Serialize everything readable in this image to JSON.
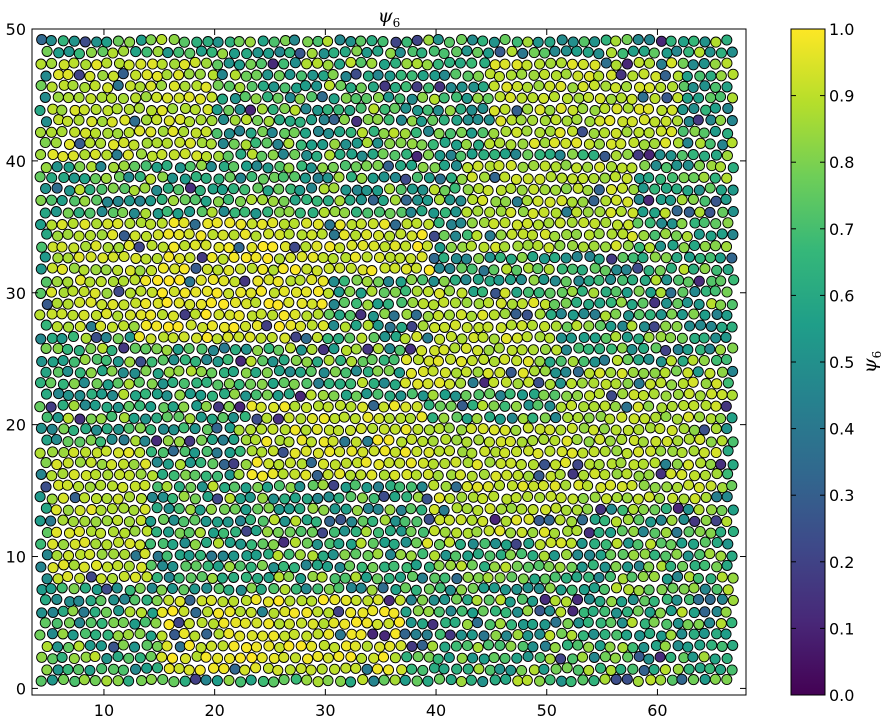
{
  "chart_data": {
    "type": "scatter",
    "title": "ψ6",
    "title_main": "ψ",
    "title_sub": "6",
    "xlabel": "",
    "ylabel": "",
    "xlim": [
      3.5,
      68
    ],
    "ylim": [
      -0.5,
      50
    ],
    "xticks": [
      10,
      20,
      30,
      40,
      50,
      60
    ],
    "yticks": [
      0,
      10,
      20,
      30,
      40,
      50
    ],
    "x_tick_labels": [
      "10",
      "20",
      "30",
      "40",
      "50",
      "60"
    ],
    "y_tick_labels": [
      "0",
      "10",
      "20",
      "30",
      "40",
      "50"
    ],
    "grid": false,
    "marker": "circle",
    "marker_edge_color": "#000000",
    "colormap": "viridis",
    "colormap_stops": [
      "#440154",
      "#482878",
      "#3e4989",
      "#31688e",
      "#26828e",
      "#1f9e89",
      "#35b779",
      "#6ece58",
      "#b5de2b",
      "#fde725"
    ],
    "lattice_spacing": 1.0,
    "colorbar": {
      "label": "ψ6",
      "label_main": "ψ",
      "label_sub": "6",
      "range": [
        0.0,
        1.0
      ],
      "ticks": [
        0.0,
        0.1,
        0.2,
        0.3,
        0.4,
        0.5,
        0.6,
        0.7,
        0.8,
        0.9,
        1.0
      ],
      "tick_labels": [
        "0.0",
        "0.1",
        "0.2",
        "0.3",
        "0.4",
        "0.5",
        "0.6",
        "0.7",
        "0.8",
        "0.9",
        "1.0"
      ]
    },
    "ordered_regions": [
      {
        "x": [
          13,
          30
        ],
        "y": [
          26,
          31
        ],
        "psi6": 0.95
      },
      {
        "x": [
          14,
          40
        ],
        "y": [
          31,
          36
        ],
        "psi6": 0.94
      },
      {
        "x": [
          5,
          20
        ],
        "y": [
          40,
          48
        ],
        "psi6": 0.9
      },
      {
        "x": [
          23,
          39
        ],
        "y": [
          16,
          22
        ],
        "psi6": 0.93
      },
      {
        "x": [
          15,
          37
        ],
        "y": [
          1,
          7
        ],
        "psi6": 0.94
      },
      {
        "x": [
          39,
          53
        ],
        "y": [
          11,
          20
        ],
        "psi6": 0.9
      },
      {
        "x": [
          45,
          62
        ],
        "y": [
          41,
          48
        ],
        "psi6": 0.9
      },
      {
        "x": [
          52,
          66
        ],
        "y": [
          14,
          24
        ],
        "psi6": 0.88
      },
      {
        "x": [
          5,
          14
        ],
        "y": [
          8,
          18
        ],
        "psi6": 0.9
      },
      {
        "x": [
          37,
          50
        ],
        "y": [
          23,
          30
        ],
        "psi6": 0.9
      },
      {
        "x": [
          5,
          14
        ],
        "y": [
          27,
          36
        ],
        "psi6": 0.9
      },
      {
        "x": [
          43,
          58
        ],
        "y": [
          33,
          40
        ],
        "psi6": 0.88
      }
    ]
  }
}
